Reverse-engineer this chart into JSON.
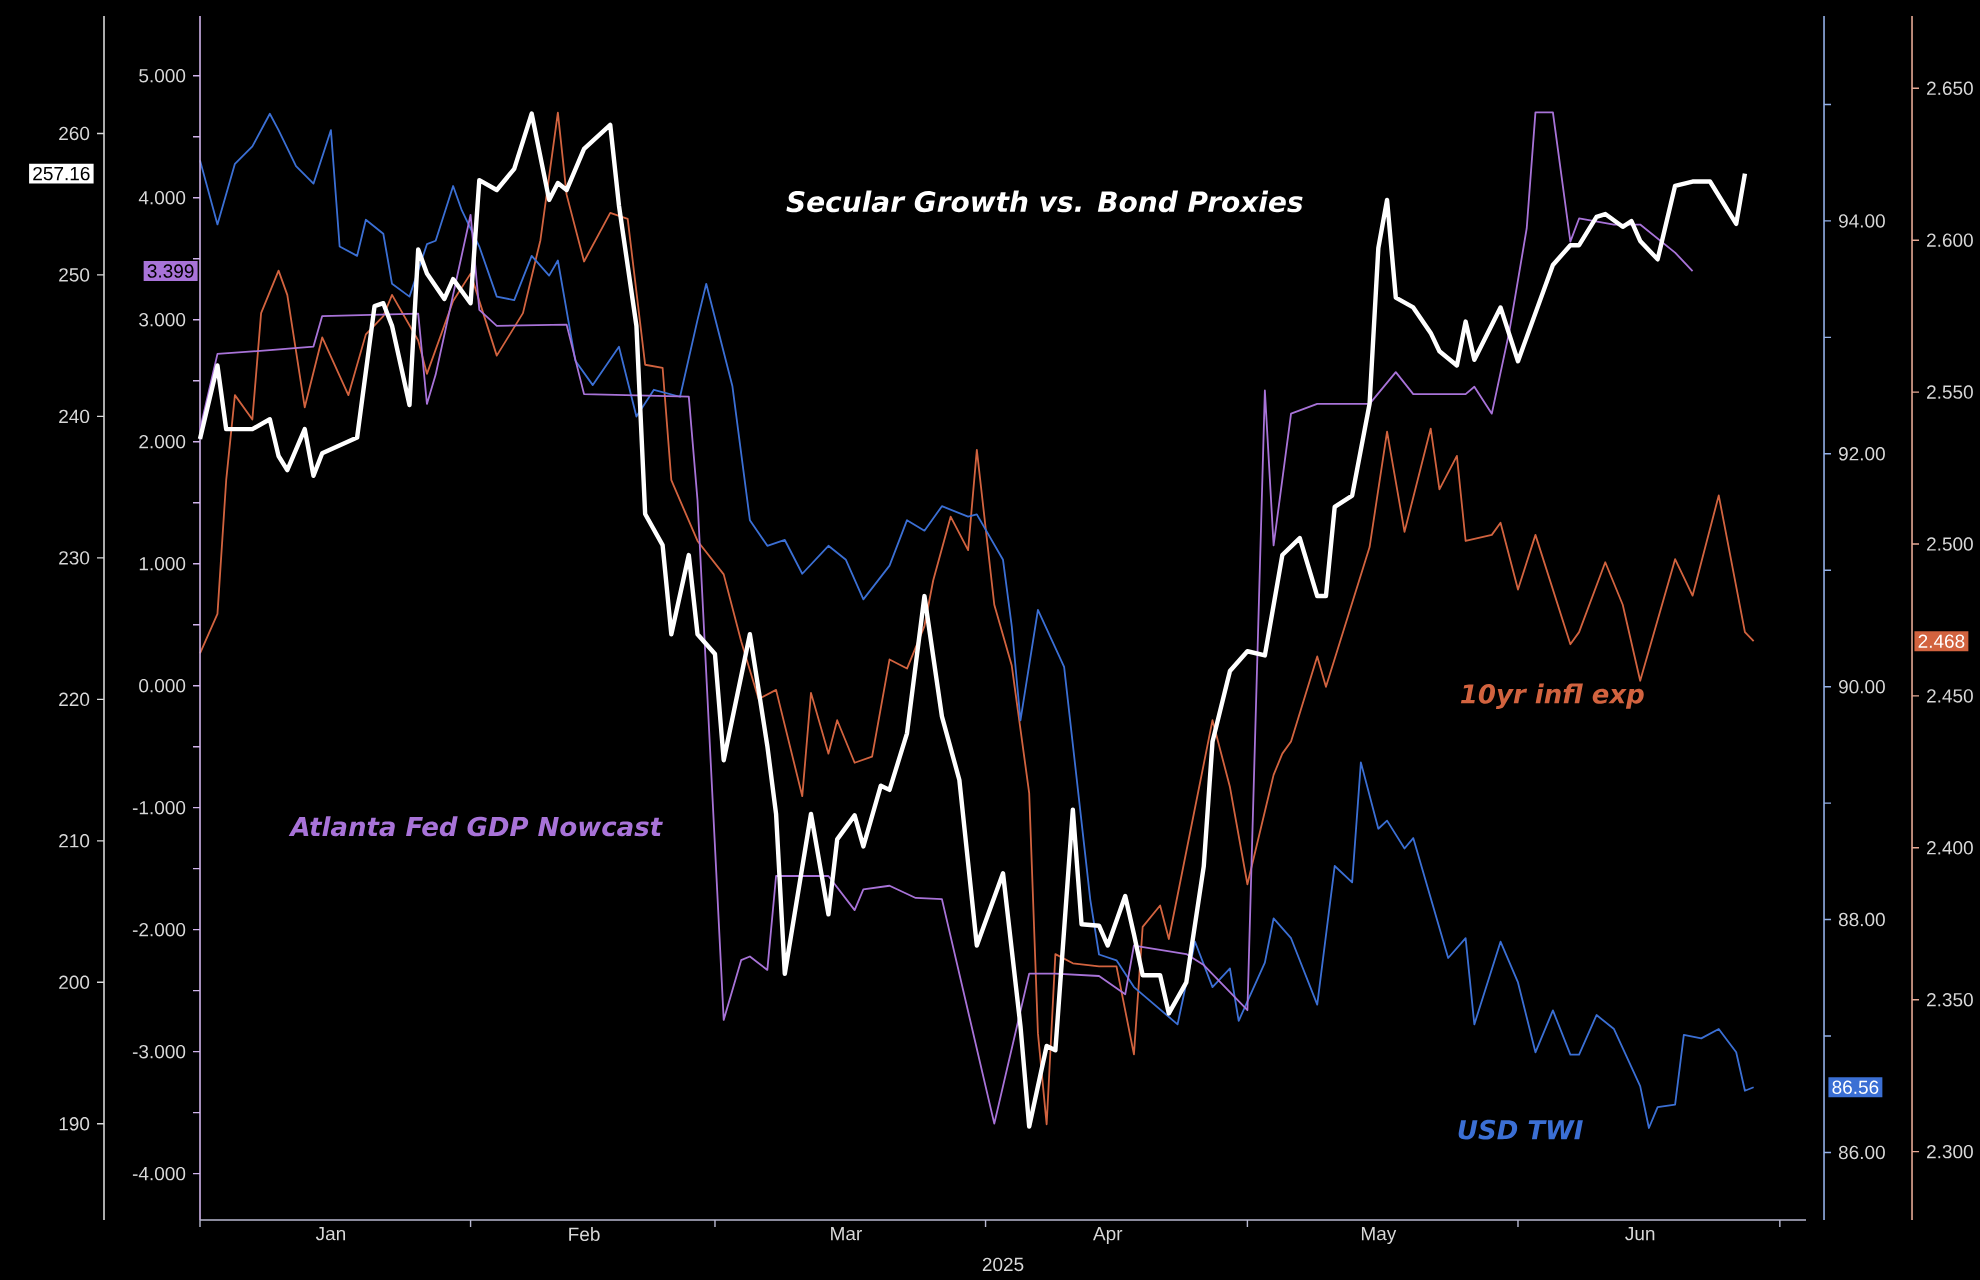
{
  "chart_data": [
    {
      "type": "line",
      "xlabel": "2025",
      "xlim": [
        "2025-01-01",
        "2025-07-04"
      ],
      "xticks": [
        {
          "value": "2025-01-01",
          "label": null
        },
        {
          "value": "2025-01-16",
          "label": "Jan"
        },
        {
          "value": "2025-02-01",
          "label": null
        },
        {
          "value": "2025-02-14",
          "label": "Feb"
        },
        {
          "value": "2025-03-01",
          "label": null
        },
        {
          "value": "2025-03-16",
          "label": "Mar"
        },
        {
          "value": "2025-04-01",
          "label": null
        },
        {
          "value": "2025-04-15",
          "label": "Apr"
        },
        {
          "value": "2025-05-01",
          "label": null
        },
        {
          "value": "2025-05-16",
          "label": "May"
        },
        {
          "value": "2025-06-01",
          "label": null
        },
        {
          "value": "2025-06-15",
          "label": "Jun"
        },
        {
          "value": "2025-07-01",
          "label": null
        }
      ],
      "ylim": [
        183.2,
        268.3
      ],
      "yticks": [
        190,
        200,
        210,
        220,
        230,
        240,
        250,
        260
      ],
      "y2lim": [
        -4.38,
        5.49
      ],
      "y2ticks": [
        {
          "value": -4,
          "label": "-4.000"
        },
        {
          "value": -3.5,
          "label": null
        },
        {
          "value": -3,
          "label": "-3.000"
        },
        {
          "value": -2.5,
          "label": null
        },
        {
          "value": -2,
          "label": "-2.000"
        },
        {
          "value": -1.5,
          "label": null
        },
        {
          "value": -1,
          "label": "-1.000"
        },
        {
          "value": -0.5,
          "label": null
        },
        {
          "value": 0,
          "label": "0.000"
        },
        {
          "value": 0.5,
          "label": null
        },
        {
          "value": 1,
          "label": "1.000"
        },
        {
          "value": 1.5,
          "label": null
        },
        {
          "value": 2,
          "label": "2.000"
        },
        {
          "value": 2.5,
          "label": null
        },
        {
          "value": 3,
          "label": "3.000"
        },
        {
          "value": 3.5,
          "label": null
        },
        {
          "value": 4,
          "label": "4.000"
        },
        {
          "value": 4.5,
          "label": null
        },
        {
          "value": 5,
          "label": "5.000"
        }
      ],
      "annotations": [
        "257.16",
        "3.399"
      ],
      "series": [
        {
          "name": "Secular Growth vs. Bond Proxies",
          "color": "#ffffff",
          "axis": "y",
          "x": [
            "2025-01-01",
            "2025-01-03",
            "2025-01-04",
            "2025-01-07",
            "2025-01-09",
            "2025-01-10",
            "2025-01-11",
            "2025-01-13",
            "2025-01-14",
            "2025-01-15",
            "2025-01-19",
            "2025-01-21",
            "2025-01-22",
            "2025-01-23",
            "2025-01-25",
            "2025-01-26",
            "2025-01-27",
            "2025-01-29",
            "2025-01-30",
            "2025-02-01",
            "2025-02-02",
            "2025-02-04",
            "2025-02-06",
            "2025-02-08",
            "2025-02-10",
            "2025-02-11",
            "2025-02-12",
            "2025-02-14",
            "2025-02-17",
            "2025-02-18",
            "2025-02-20",
            "2025-02-21",
            "2025-02-23",
            "2025-02-24",
            "2025-02-26",
            "2025-02-27",
            "2025-03-01",
            "2025-03-02",
            "2025-03-05",
            "2025-03-07",
            "2025-03-08",
            "2025-03-09",
            "2025-03-12",
            "2025-03-14",
            "2025-03-15",
            "2025-03-17",
            "2025-03-18",
            "2025-03-20",
            "2025-03-21",
            "2025-03-23",
            "2025-03-25",
            "2025-03-27",
            "2025-03-29",
            "2025-03-31",
            "2025-04-03",
            "2025-04-05",
            "2025-04-06",
            "2025-04-08",
            "2025-04-09",
            "2025-04-11",
            "2025-04-12",
            "2025-04-14",
            "2025-04-15",
            "2025-04-17",
            "2025-04-18",
            "2025-04-19",
            "2025-04-21",
            "2025-04-22",
            "2025-04-24",
            "2025-04-26",
            "2025-04-27",
            "2025-04-29",
            "2025-05-01",
            "2025-05-03",
            "2025-05-05",
            "2025-05-07",
            "2025-05-09",
            "2025-05-10",
            "2025-05-11",
            "2025-05-13",
            "2025-05-15",
            "2025-05-16",
            "2025-05-17",
            "2025-05-18",
            "2025-05-20",
            "2025-05-22",
            "2025-05-23",
            "2025-05-25",
            "2025-05-26",
            "2025-05-27",
            "2025-05-30",
            "2025-06-01",
            "2025-06-03",
            "2025-06-05",
            "2025-06-07",
            "2025-06-08",
            "2025-06-10",
            "2025-06-11",
            "2025-06-13",
            "2025-06-14",
            "2025-06-15",
            "2025-06-17",
            "2025-06-19",
            "2025-06-21",
            "2025-06-23",
            "2025-06-26",
            "2025-06-27"
          ],
          "values": [
            238.4,
            243.6,
            239.1,
            239.1,
            239.8,
            237.2,
            236.2,
            239.1,
            235.8,
            237.4,
            238.5,
            247.8,
            248.0,
            246.4,
            240.8,
            251.8,
            250.1,
            248.3,
            249.7,
            248.0,
            256.7,
            256.0,
            257.5,
            261.4,
            255.3,
            256.5,
            256.0,
            258.9,
            260.6,
            254.9,
            246.4,
            233.1,
            230.9,
            224.6,
            230.2,
            224.6,
            223.2,
            215.7,
            224.6,
            216.7,
            211.9,
            200.6,
            211.9,
            204.8,
            210.1,
            211.8,
            209.6,
            213.9,
            213.6,
            217.6,
            227.3,
            218.8,
            214.3,
            202.6,
            207.7,
            196.9,
            189.8,
            195.5,
            195.2,
            212.2,
            204.1,
            204.0,
            202.6,
            206.1,
            203.4,
            200.5,
            200.5,
            197.8,
            200.0,
            208.2,
            217.0,
            222.0,
            223.4,
            223.1,
            230.2,
            231.4,
            227.3,
            227.3,
            233.6,
            234.4,
            240.9,
            251.9,
            255.3,
            248.4,
            247.7,
            245.9,
            244.6,
            243.6,
            246.7,
            244.0,
            247.7,
            243.9,
            247.3,
            250.7,
            252.1,
            252.1,
            254.1,
            254.3,
            253.4,
            253.8,
            252.4,
            251.1,
            256.3,
            256.6,
            256.6,
            253.6,
            257.16
          ]
        },
        {
          "name": "Atlanta Fed GDP Nowcast",
          "color": "#a873d8",
          "axis": "y2",
          "x": [
            "2025-01-01",
            "2025-01-03",
            "2025-01-09",
            "2025-01-14",
            "2025-01-15",
            "2025-01-26",
            "2025-01-27",
            "2025-01-28",
            "2025-02-01",
            "2025-02-02",
            "2025-02-04",
            "2025-02-12",
            "2025-02-14",
            "2025-02-26",
            "2025-02-27",
            "2025-03-02",
            "2025-03-04",
            "2025-03-05",
            "2025-03-07",
            "2025-03-08",
            "2025-03-14",
            "2025-03-17",
            "2025-03-18",
            "2025-03-21",
            "2025-03-24",
            "2025-03-27",
            "2025-04-02",
            "2025-04-06",
            "2025-04-09",
            "2025-04-14",
            "2025-04-17",
            "2025-04-18",
            "2025-04-24",
            "2025-04-26",
            "2025-05-01",
            "2025-05-03",
            "2025-05-04",
            "2025-05-06",
            "2025-05-09",
            "2025-05-15",
            "2025-05-18",
            "2025-05-20",
            "2025-05-26",
            "2025-05-27",
            "2025-05-29",
            "2025-05-31",
            "2025-06-02",
            "2025-06-03",
            "2025-06-05",
            "2025-06-07",
            "2025-06-08",
            "2025-06-12",
            "2025-06-15",
            "2025-06-19",
            "2025-06-21"
          ],
          "values": [
            2.1,
            2.72,
            2.75,
            2.78,
            3.03,
            3.05,
            2.31,
            2.55,
            3.86,
            3.08,
            2.95,
            2.96,
            2.39,
            2.37,
            1.52,
            -2.74,
            -2.25,
            -2.22,
            -2.33,
            -1.56,
            -1.56,
            -1.84,
            -1.67,
            -1.64,
            -1.74,
            -1.75,
            -3.59,
            -2.36,
            -2.36,
            -2.38,
            -2.53,
            -2.13,
            -2.2,
            -2.29,
            -2.66,
            2.42,
            1.15,
            2.23,
            2.31,
            2.31,
            2.57,
            2.39,
            2.39,
            2.45,
            2.23,
            2.9,
            3.75,
            4.7,
            4.7,
            3.64,
            3.83,
            3.78,
            3.78,
            3.55,
            3.399
          ]
        }
      ]
    },
    {
      "type": "line",
      "tick_labels": "y",
      "xlim": [
        "2025-01-01",
        "2025-07-04"
      ],
      "ylim": [
        85.42,
        95.76
      ],
      "yticks": [
        {
          "value": 86,
          "label": "86.00"
        },
        {
          "value": 87,
          "label": null
        },
        {
          "value": 88,
          "label": "88.00"
        },
        {
          "value": 89,
          "label": null
        },
        {
          "value": 90,
          "label": "90.00"
        },
        {
          "value": 91,
          "label": null
        },
        {
          "value": 92,
          "label": "92.00"
        },
        {
          "value": 93,
          "label": null
        },
        {
          "value": 94,
          "label": "94.00"
        },
        {
          "value": 95,
          "label": null
        }
      ],
      "y2lim": [
        2.2775,
        2.6738
      ],
      "y2ticks": [
        {
          "value": 2.3,
          "label": "2.300"
        },
        {
          "value": 2.35,
          "label": "2.350"
        },
        {
          "value": 2.4,
          "label": "2.400"
        },
        {
          "value": 2.45,
          "label": "2.450"
        },
        {
          "value": 2.5,
          "label": "2.500"
        },
        {
          "value": 2.55,
          "label": "2.550"
        },
        {
          "value": 2.6,
          "label": "2.600"
        },
        {
          "value": 2.65,
          "label": "2.650"
        }
      ],
      "annotations": [
        "86.56",
        "2.468"
      ],
      "series": [
        {
          "name": "USD TWI",
          "color": "#3b6fd4",
          "axis": "y",
          "x": [
            "2025-01-01",
            "2025-01-03",
            "2025-01-05",
            "2025-01-07",
            "2025-01-09",
            "2025-01-10",
            "2025-01-12",
            "2025-01-14",
            "2025-01-16",
            "2025-01-17",
            "2025-01-19",
            "2025-01-20",
            "2025-01-22",
            "2025-01-23",
            "2025-01-25",
            "2025-01-27",
            "2025-01-28",
            "2025-01-30",
            "2025-01-31",
            "2025-02-02",
            "2025-02-04",
            "2025-02-06",
            "2025-02-08",
            "2025-02-10",
            "2025-02-11",
            "2025-02-13",
            "2025-02-15",
            "2025-02-18",
            "2025-02-20",
            "2025-02-22",
            "2025-02-25",
            "2025-02-27",
            "2025-02-28",
            "2025-03-03",
            "2025-03-05",
            "2025-03-07",
            "2025-03-09",
            "2025-03-11",
            "2025-03-14",
            "2025-03-16",
            "2025-03-18",
            "2025-03-21",
            "2025-03-23",
            "2025-03-25",
            "2025-03-27",
            "2025-03-30",
            "2025-03-31",
            "2025-04-03",
            "2025-04-04",
            "2025-04-05",
            "2025-04-07",
            "2025-04-10",
            "2025-04-13",
            "2025-04-14",
            "2025-04-16",
            "2025-04-18",
            "2025-04-23",
            "2025-04-25",
            "2025-04-27",
            "2025-04-29",
            "2025-04-30",
            "2025-05-03",
            "2025-05-04",
            "2025-05-06",
            "2025-05-09",
            "2025-05-11",
            "2025-05-13",
            "2025-05-14",
            "2025-05-16",
            "2025-05-17",
            "2025-05-19",
            "2025-05-20",
            "2025-05-24",
            "2025-05-26",
            "2025-05-27",
            "2025-05-30",
            "2025-06-01",
            "2025-06-03",
            "2025-06-05",
            "2025-06-07",
            "2025-06-08",
            "2025-06-10",
            "2025-06-12",
            "2025-06-15",
            "2025-06-16",
            "2025-06-17",
            "2025-06-19",
            "2025-06-20",
            "2025-06-22",
            "2025-06-24",
            "2025-06-26",
            "2025-06-27",
            "2025-06-28"
          ],
          "values": [
            94.52,
            93.97,
            94.49,
            94.64,
            94.92,
            94.78,
            94.47,
            94.32,
            94.78,
            93.78,
            93.7,
            94.01,
            93.89,
            93.46,
            93.35,
            93.8,
            93.83,
            94.3,
            94.09,
            93.78,
            93.35,
            93.32,
            93.7,
            93.53,
            93.66,
            92.8,
            92.59,
            92.92,
            92.32,
            92.55,
            92.49,
            93.15,
            93.46,
            92.58,
            91.43,
            91.21,
            91.26,
            90.97,
            91.21,
            91.09,
            90.75,
            91.04,
            91.43,
            91.34,
            91.55,
            91.46,
            91.48,
            91.09,
            90.52,
            89.71,
            90.66,
            90.17,
            88.17,
            87.7,
            87.65,
            87.42,
            87.1,
            87.81,
            87.42,
            87.58,
            87.13,
            87.63,
            88.01,
            87.84,
            87.27,
            88.46,
            88.32,
            89.35,
            88.78,
            88.85,
            88.61,
            88.7,
            87.67,
            87.84,
            87.1,
            87.81,
            87.46,
            86.86,
            87.22,
            86.84,
            86.84,
            87.18,
            87.06,
            86.57,
            86.21,
            86.39,
            86.41,
            87.01,
            86.98,
            87.06,
            86.86,
            86.53,
            86.56
          ]
        },
        {
          "name": "10yr infl exp",
          "color": "#d2633f",
          "axis": "y2",
          "x": [
            "2025-01-01",
            "2025-01-03",
            "2025-01-04",
            "2025-01-05",
            "2025-01-07",
            "2025-01-08",
            "2025-01-10",
            "2025-01-11",
            "2025-01-13",
            "2025-01-15",
            "2025-01-18",
            "2025-01-20",
            "2025-01-22",
            "2025-01-23",
            "2025-01-26",
            "2025-01-27",
            "2025-01-30",
            "2025-02-01",
            "2025-02-04",
            "2025-02-07",
            "2025-02-09",
            "2025-02-11",
            "2025-02-12",
            "2025-02-14",
            "2025-02-17",
            "2025-02-19",
            "2025-02-21",
            "2025-02-23",
            "2025-02-24",
            "2025-02-27",
            "2025-03-02",
            "2025-03-04",
            "2025-03-06",
            "2025-03-08",
            "2025-03-11",
            "2025-03-12",
            "2025-03-14",
            "2025-03-15",
            "2025-03-17",
            "2025-03-19",
            "2025-03-21",
            "2025-03-23",
            "2025-03-25",
            "2025-03-26",
            "2025-03-28",
            "2025-03-30",
            "2025-03-31",
            "2025-04-02",
            "2025-04-04",
            "2025-04-06",
            "2025-04-07",
            "2025-04-08",
            "2025-04-09",
            "2025-04-11",
            "2025-04-14",
            "2025-04-16",
            "2025-04-18",
            "2025-04-19",
            "2025-04-21",
            "2025-04-22",
            "2025-04-27",
            "2025-04-29",
            "2025-05-01",
            "2025-05-04",
            "2025-05-05",
            "2025-05-06",
            "2025-05-09",
            "2025-05-10",
            "2025-05-15",
            "2025-05-17",
            "2025-05-19",
            "2025-05-22",
            "2025-05-23",
            "2025-05-25",
            "2025-05-26",
            "2025-05-29",
            "2025-05-30",
            "2025-06-01",
            "2025-06-03",
            "2025-06-07",
            "2025-06-08",
            "2025-06-11",
            "2025-06-13",
            "2025-06-15",
            "2025-06-19",
            "2025-06-21",
            "2025-06-24",
            "2025-06-27",
            "2025-06-28"
          ],
          "values": [
            2.464,
            2.477,
            2.521,
            2.549,
            2.541,
            2.576,
            2.59,
            2.582,
            2.545,
            2.568,
            2.549,
            2.569,
            2.575,
            2.582,
            2.567,
            2.556,
            2.58,
            2.589,
            2.562,
            2.576,
            2.6,
            2.642,
            2.615,
            2.593,
            2.609,
            2.607,
            2.559,
            2.558,
            2.521,
            2.501,
            2.49,
            2.468,
            2.449,
            2.452,
            2.417,
            2.451,
            2.431,
            2.442,
            2.428,
            2.43,
            2.462,
            2.459,
            2.473,
            2.488,
            2.509,
            2.498,
            2.531,
            2.48,
            2.46,
            2.418,
            2.339,
            2.309,
            2.365,
            2.362,
            2.361,
            2.361,
            2.332,
            2.374,
            2.381,
            2.37,
            2.442,
            2.42,
            2.388,
            2.424,
            2.431,
            2.435,
            2.463,
            2.453,
            2.499,
            2.537,
            2.504,
            2.538,
            2.518,
            2.529,
            2.501,
            2.503,
            2.507,
            2.485,
            2.503,
            2.467,
            2.471,
            2.494,
            2.48,
            2.455,
            2.495,
            2.483,
            2.516,
            2.471,
            2.468
          ]
        }
      ]
    }
  ]
}
